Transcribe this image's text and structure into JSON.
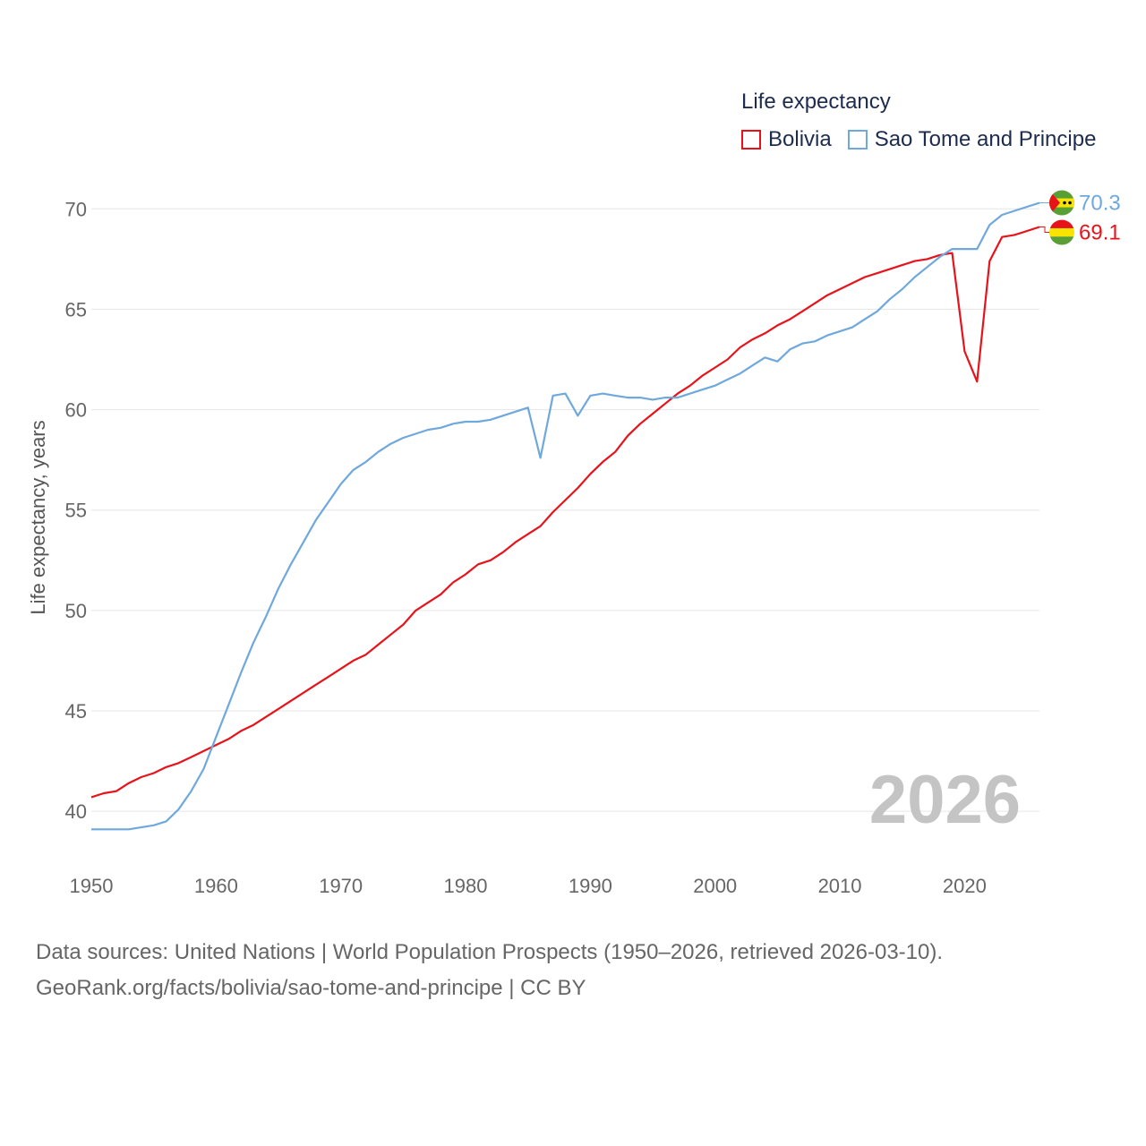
{
  "legend": {
    "title": "Life expectancy",
    "items": [
      {
        "name": "Bolivia",
        "color": "#e8131a"
      },
      {
        "name": "Sao Tome and Principe",
        "color": "#6fa8dc"
      }
    ]
  },
  "year_label": "2026",
  "source": {
    "line1": "Data sources: United Nations | World Population Prospects (1950–2026, retrieved 2026-03-10).",
    "line2": "GeoRank.org/facts/bolivia/sao-tome-and-principe | CC BY"
  },
  "chart_data": {
    "type": "line",
    "title": "Life expectancy",
    "xlabel": "",
    "ylabel": "Life expectancy, years",
    "xlim": [
      1950,
      2026
    ],
    "ylim": [
      38,
      73
    ],
    "x_ticks": [
      1950,
      1960,
      1970,
      1980,
      1990,
      2000,
      2010,
      2020
    ],
    "y_ticks": [
      40,
      45,
      50,
      55,
      60,
      65,
      70
    ],
    "grid": true,
    "x": [
      1950,
      1951,
      1952,
      1953,
      1954,
      1955,
      1956,
      1957,
      1958,
      1959,
      1960,
      1961,
      1962,
      1963,
      1964,
      1965,
      1966,
      1967,
      1968,
      1969,
      1970,
      1971,
      1972,
      1973,
      1974,
      1975,
      1976,
      1977,
      1978,
      1979,
      1980,
      1981,
      1982,
      1983,
      1984,
      1985,
      1986,
      1987,
      1988,
      1989,
      1990,
      1991,
      1992,
      1993,
      1994,
      1995,
      1996,
      1997,
      1998,
      1999,
      2000,
      2001,
      2002,
      2003,
      2004,
      2005,
      2006,
      2007,
      2008,
      2009,
      2010,
      2011,
      2012,
      2013,
      2014,
      2015,
      2016,
      2017,
      2018,
      2019,
      2020,
      2021,
      2022,
      2023,
      2024,
      2025,
      2026
    ],
    "series": [
      {
        "name": "Bolivia",
        "color": "#e8131a",
        "end_label": "69.1",
        "values": [
          40.7,
          40.9,
          41.0,
          41.4,
          41.7,
          41.9,
          42.2,
          42.4,
          42.7,
          43.0,
          43.3,
          43.6,
          44.0,
          44.3,
          44.7,
          45.1,
          45.5,
          45.9,
          46.3,
          46.7,
          47.1,
          47.5,
          47.8,
          48.3,
          48.8,
          49.3,
          50.0,
          50.4,
          50.8,
          51.4,
          51.8,
          52.3,
          52.5,
          52.9,
          53.4,
          53.8,
          54.2,
          54.9,
          55.5,
          56.1,
          56.8,
          57.4,
          57.9,
          58.7,
          59.3,
          59.8,
          60.3,
          60.8,
          61.2,
          61.7,
          62.1,
          62.5,
          63.1,
          63.5,
          63.8,
          64.2,
          64.5,
          64.9,
          65.3,
          65.7,
          66.0,
          66.3,
          66.6,
          66.8,
          67.0,
          67.2,
          67.4,
          67.5,
          67.7,
          67.8,
          62.9,
          61.4,
          67.4,
          68.6,
          68.7,
          68.9,
          69.1
        ]
      },
      {
        "name": "Sao Tome and Principe",
        "color": "#6fa8dc",
        "end_label": "70.3",
        "values": [
          39.1,
          39.1,
          39.1,
          39.1,
          39.2,
          39.3,
          39.5,
          40.1,
          41.0,
          42.1,
          43.7,
          45.3,
          46.9,
          48.4,
          49.7,
          51.1,
          52.3,
          53.4,
          54.5,
          55.4,
          56.3,
          57.0,
          57.4,
          57.9,
          58.3,
          58.6,
          58.8,
          59.0,
          59.1,
          59.3,
          59.4,
          59.4,
          59.5,
          59.7,
          59.9,
          60.1,
          57.6,
          60.7,
          60.8,
          59.7,
          60.7,
          60.8,
          60.7,
          60.6,
          60.6,
          60.5,
          60.6,
          60.6,
          60.8,
          61.0,
          61.2,
          61.5,
          61.8,
          62.2,
          62.6,
          62.4,
          63.0,
          63.3,
          63.4,
          63.7,
          63.9,
          64.1,
          64.5,
          64.9,
          65.5,
          66.0,
          66.6,
          67.1,
          67.6,
          68.0,
          68.0,
          68.0,
          69.2,
          69.7,
          69.9,
          70.1,
          70.3
        ]
      }
    ]
  }
}
